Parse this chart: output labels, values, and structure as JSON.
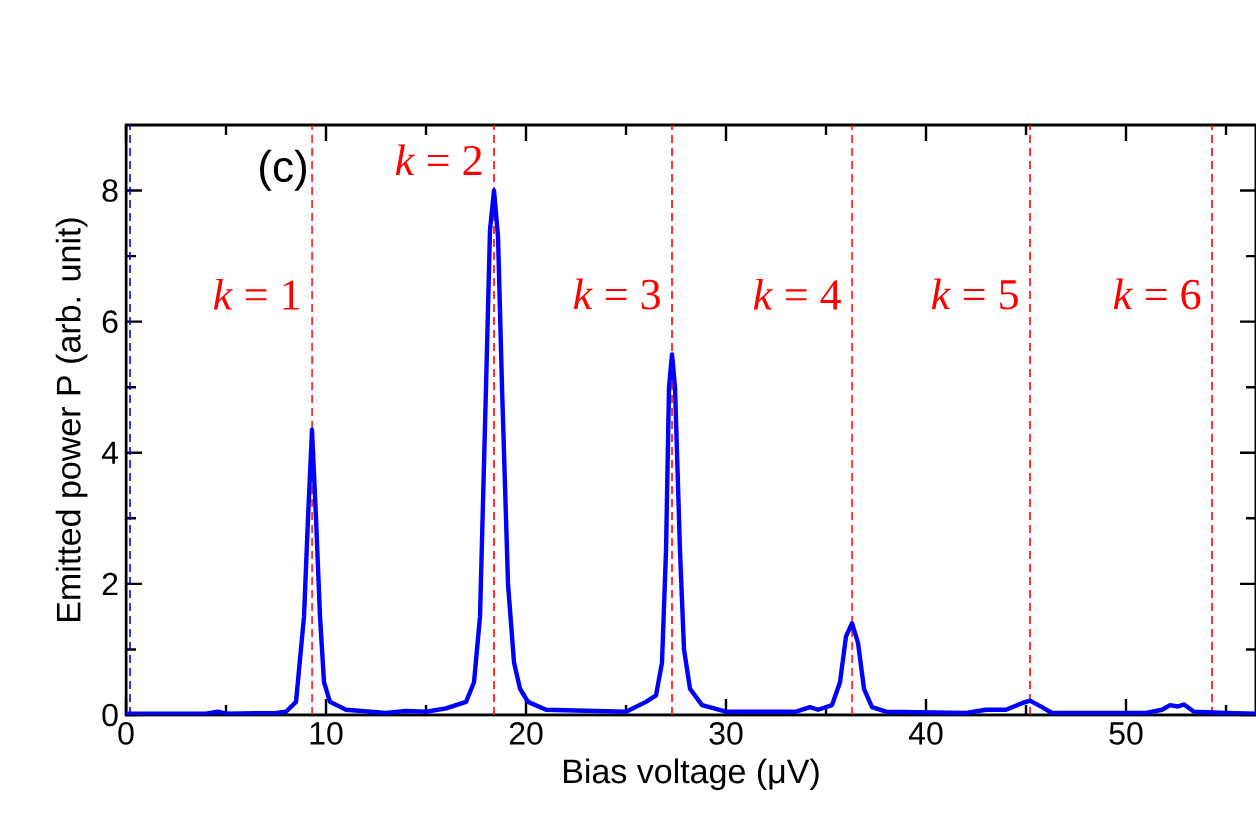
{
  "chart_data": {
    "type": "line",
    "xlabel": "Bias voltage (μV)",
    "ylabel": "Emitted power P (arb. unit)",
    "x": [
      0,
      2,
      4,
      4.6,
      5,
      7.5,
      8.0,
      8.5,
      8.9,
      9.1,
      9.3,
      9.5,
      9.7,
      9.9,
      10.2,
      11,
      13,
      14,
      15,
      16,
      17,
      17.4,
      17.7,
      18.0,
      18.2,
      18.4,
      18.6,
      18.8,
      19.1,
      19.4,
      19.7,
      20.1,
      21,
      25,
      26.0,
      26.5,
      26.8,
      27.0,
      27.15,
      27.3,
      27.45,
      27.7,
      27.9,
      28.2,
      28.8,
      30,
      33.5,
      34.2,
      34.6,
      35.3,
      35.7,
      36.0,
      36.3,
      36.6,
      36.9,
      37.3,
      38,
      42,
      43,
      44,
      44.8,
      45.2,
      45.8,
      46.3,
      51,
      51.8,
      52.2,
      52.6,
      52.9,
      53.4,
      55,
      56.5
    ],
    "series": [
      {
        "color": "#0000ff",
        "values": [
          0.02,
          0.02,
          0.02,
          0.05,
          0.02,
          0.03,
          0.05,
          0.2,
          1.5,
          3.0,
          4.35,
          3.0,
          1.5,
          0.5,
          0.2,
          0.08,
          0.03,
          0.06,
          0.05,
          0.1,
          0.2,
          0.5,
          1.5,
          5.0,
          7.4,
          8.0,
          7.3,
          5.0,
          2.0,
          0.8,
          0.4,
          0.2,
          0.08,
          0.05,
          0.2,
          0.3,
          0.8,
          2.5,
          5.0,
          5.5,
          5.0,
          2.5,
          1.0,
          0.4,
          0.15,
          0.05,
          0.05,
          0.12,
          0.08,
          0.15,
          0.5,
          1.2,
          1.4,
          1.1,
          0.4,
          0.12,
          0.05,
          0.03,
          0.08,
          0.08,
          0.18,
          0.22,
          0.12,
          0.03,
          0.03,
          0.08,
          0.15,
          0.13,
          0.16,
          0.05,
          0.03,
          0.02
        ]
      }
    ],
    "xlim": [
      0,
      56.5
    ],
    "ylim": [
      0,
      9
    ],
    "xticks": [
      0,
      {
        "value": 5,
        "label": null
      },
      10,
      {
        "value": 15,
        "label": null
      },
      20,
      {
        "value": 25,
        "label": null
      },
      30,
      {
        "value": 35,
        "label": null
      },
      40,
      {
        "value": 45,
        "label": null
      },
      50,
      {
        "value": 55,
        "label": null
      }
    ],
    "yticks": [
      0,
      {
        "value": 1,
        "label": null
      },
      2,
      {
        "value": 3,
        "label": null
      },
      4,
      {
        "value": 5,
        "label": null
      },
      6,
      {
        "value": 7,
        "label": null
      },
      8
    ],
    "ref_lines": [
      {
        "axis": "x",
        "value": 0.2,
        "color": "#0000ff",
        "line_style": "dashed"
      },
      {
        "axis": "x",
        "value": 9.3,
        "color": "#ff0000",
        "line_style": "dashed"
      },
      {
        "axis": "x",
        "value": 18.4,
        "color": "#ff0000",
        "line_style": "dashed"
      },
      {
        "axis": "x",
        "value": 27.3,
        "color": "#ff0000",
        "line_style": "dashed"
      },
      {
        "axis": "x",
        "value": 36.3,
        "color": "#ff0000",
        "line_style": "dashed"
      },
      {
        "axis": "x",
        "value": 45.2,
        "color": "#ff0000",
        "line_style": "dashed"
      },
      {
        "axis": "x",
        "value": 54.3,
        "color": "#ff0000",
        "line_style": "dashed"
      }
    ],
    "annotations": [
      "(c)",
      {
        "text": "*k* = 1",
        "x": 9.3,
        "y": 6.15
      },
      {
        "text": "*k* = 2",
        "x": 18.4,
        "y": 8.2
      },
      {
        "text": "*k* = 3",
        "x": 27.3,
        "y": 6.15
      },
      {
        "text": "*k* = 4",
        "x": 36.3,
        "y": 6.15
      },
      {
        "text": "*k* = 5",
        "x": 45.2,
        "y": 6.15
      },
      {
        "text": "*k* = 6",
        "x": 54.3,
        "y": 6.15
      }
    ]
  }
}
